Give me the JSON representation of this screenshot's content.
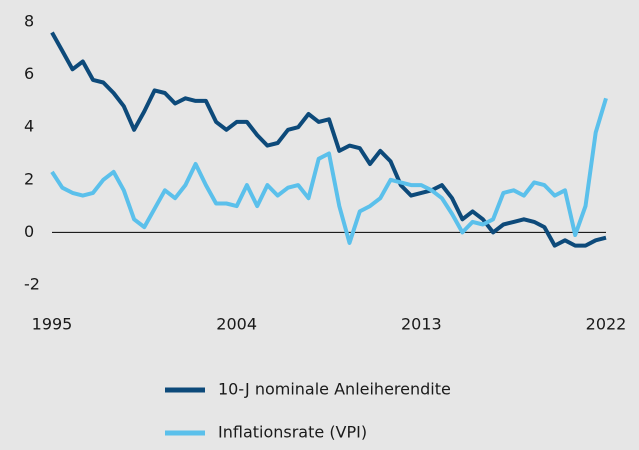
{
  "chart_data": {
    "type": "line",
    "x": [
      1995,
      1995.5,
      1996,
      1996.5,
      1997,
      1997.5,
      1998,
      1998.5,
      1999,
      1999.5,
      2000,
      2000.5,
      2001,
      2001.5,
      2002,
      2002.5,
      2003,
      2003.5,
      2004,
      2004.5,
      2005,
      2005.5,
      2006,
      2006.5,
      2007,
      2007.5,
      2008,
      2008.5,
      2009,
      2009.5,
      2010,
      2010.5,
      2011,
      2011.5,
      2012,
      2012.5,
      2013,
      2013.5,
      2014,
      2014.5,
      2015,
      2015.5,
      2016,
      2016.5,
      2017,
      2017.5,
      2018,
      2018.5,
      2019,
      2019.5,
      2020,
      2020.5,
      2021,
      2021.5,
      2022
    ],
    "series": [
      {
        "name": "10-J nominale Anleiherendite",
        "color": "#0d4a7a",
        "values": [
          7.6,
          6.9,
          6.2,
          6.5,
          5.8,
          5.7,
          5.3,
          4.8,
          3.9,
          4.6,
          5.4,
          5.3,
          4.9,
          5.1,
          5.0,
          5.0,
          4.2,
          3.9,
          4.2,
          4.2,
          3.7,
          3.3,
          3.4,
          3.9,
          4.0,
          4.5,
          4.2,
          4.3,
          3.1,
          3.3,
          3.2,
          2.6,
          3.1,
          2.7,
          1.8,
          1.4,
          1.5,
          1.6,
          1.8,
          1.3,
          0.5,
          0.8,
          0.5,
          0.0,
          0.3,
          0.4,
          0.5,
          0.4,
          0.2,
          -0.5,
          -0.3,
          -0.5,
          -0.5,
          -0.3,
          -0.2
        ]
      },
      {
        "name": "Inflationsrate (VPI)",
        "color": "#5bc0eb",
        "values": [
          2.3,
          1.7,
          1.5,
          1.4,
          1.5,
          2.0,
          2.3,
          1.6,
          0.5,
          0.2,
          0.9,
          1.6,
          1.3,
          1.8,
          2.6,
          1.8,
          1.1,
          1.1,
          1.0,
          1.8,
          1.0,
          1.8,
          1.4,
          1.7,
          1.8,
          1.3,
          2.8,
          3.0,
          1.0,
          -0.4,
          0.8,
          1.0,
          1.3,
          2.0,
          1.9,
          1.8,
          1.8,
          1.6,
          1.3,
          0.7,
          0.0,
          0.4,
          0.3,
          0.5,
          1.5,
          1.6,
          1.4,
          1.9,
          1.8,
          1.4,
          1.6,
          -0.1,
          1.0,
          3.8,
          5.1
        ]
      }
    ],
    "xlim": [
      1995,
      2022
    ],
    "xticks": [
      1995,
      2004,
      2013,
      2022
    ],
    "ylim": [
      -2,
      8
    ],
    "yticks": [
      -2,
      0,
      2,
      4,
      6,
      8
    ]
  }
}
